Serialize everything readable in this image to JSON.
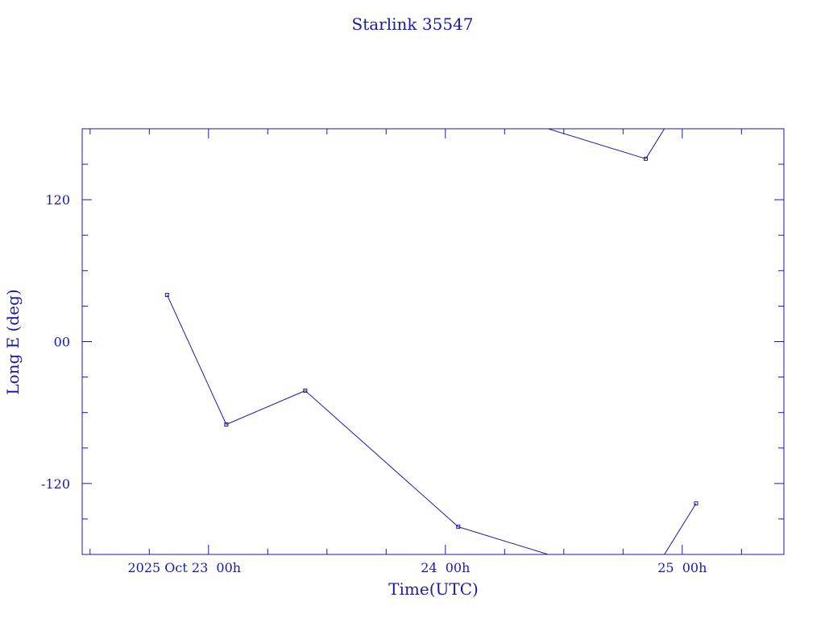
{
  "chart_data": {
    "type": "line",
    "title": "Starlink 35547",
    "xlabel": "Time(UTC)",
    "ylabel": "Long E (deg)",
    "color": "#1a1aa6",
    "x_unit": "hours since 2025 Oct 23 00h UTC",
    "xlim": [
      -12.8,
      58.3
    ],
    "ylim": [
      -180,
      180
    ],
    "x_ticks": [
      {
        "value": 0,
        "label": "2025 Oct 23  00h"
      },
      {
        "value": 24,
        "label": "24  00h"
      },
      {
        "value": 48,
        "label": "25  00h"
      }
    ],
    "y_ticks": [
      {
        "value": 120,
        "label": "120"
      },
      {
        "value": 0,
        "label": "00"
      },
      {
        "value": -120,
        "label": "-120"
      }
    ],
    "grid": false,
    "series": [
      {
        "name": "Starlink 35547",
        "wrap": 360,
        "x": [
          -4.2,
          1.8,
          9.8,
          25.3,
          44.3,
          49.4
        ],
        "y": [
          39.5,
          -70.1,
          -41.5,
          -156.6,
          154.6,
          -136.9
        ]
      }
    ]
  }
}
